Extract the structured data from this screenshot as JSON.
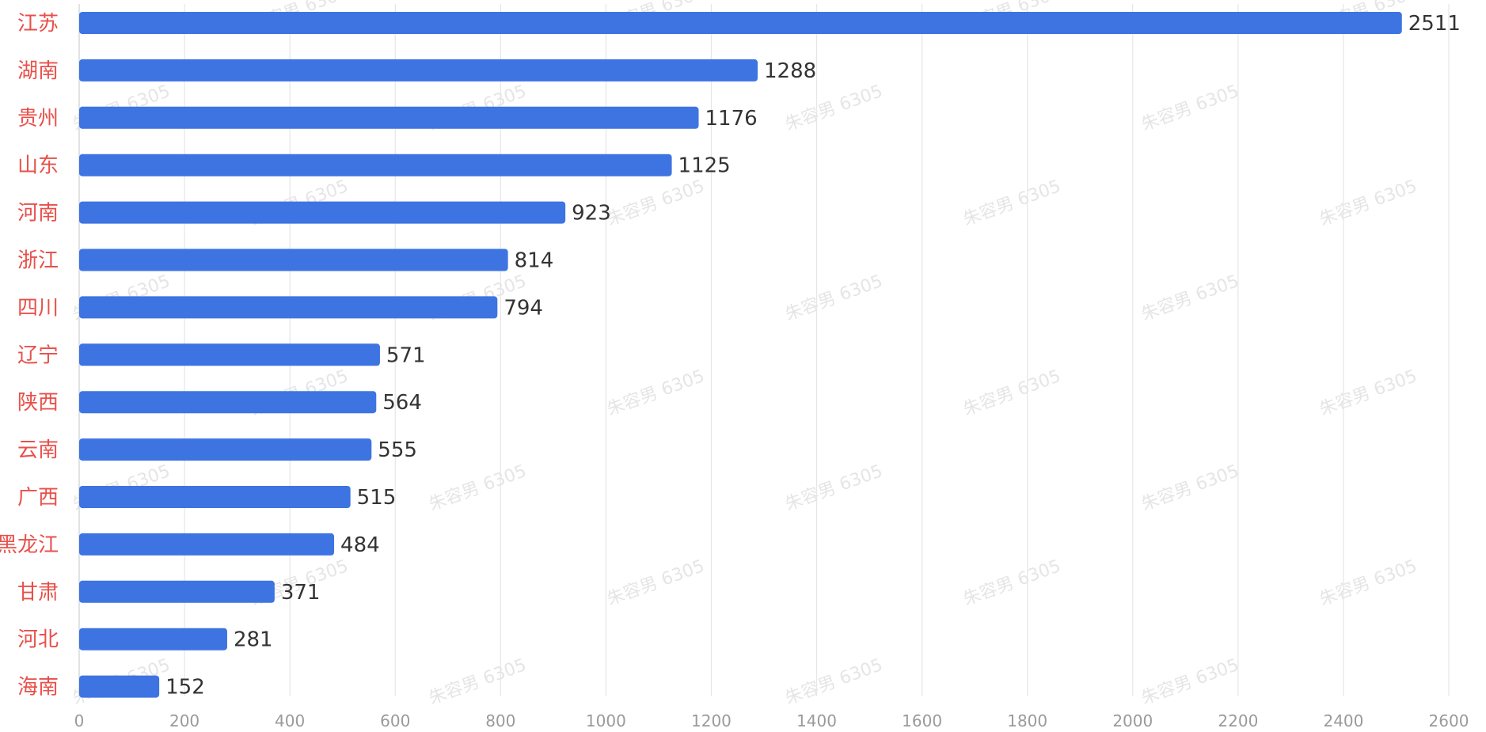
{
  "watermark_text": "朱容男 6305",
  "colors": {
    "bar": "#3d74e2",
    "category_label": "#e8504a",
    "value_label": "#333333",
    "tick_label": "#9a9a9a",
    "grid": "#e6e6e6"
  },
  "chart_data": {
    "type": "bar",
    "orientation": "horizontal",
    "title": "",
    "xlabel": "",
    "ylabel": "",
    "categories": [
      "江苏",
      "湖南",
      "贵州",
      "山东",
      "河南",
      "浙江",
      "四川",
      "辽宁",
      "陕西",
      "云南",
      "广西",
      "黑龙江",
      "甘肃",
      "河北",
      "海南"
    ],
    "values": [
      2511,
      1288,
      1176,
      1125,
      923,
      814,
      794,
      571,
      564,
      555,
      515,
      484,
      371,
      281,
      152
    ],
    "xlim": [
      0,
      2600
    ],
    "xticks": [
      0,
      200,
      400,
      600,
      800,
      1000,
      1200,
      1400,
      1600,
      1800,
      2000,
      2200,
      2400,
      2600
    ],
    "grid": "vertical",
    "data_labels": true,
    "legend": "none"
  }
}
